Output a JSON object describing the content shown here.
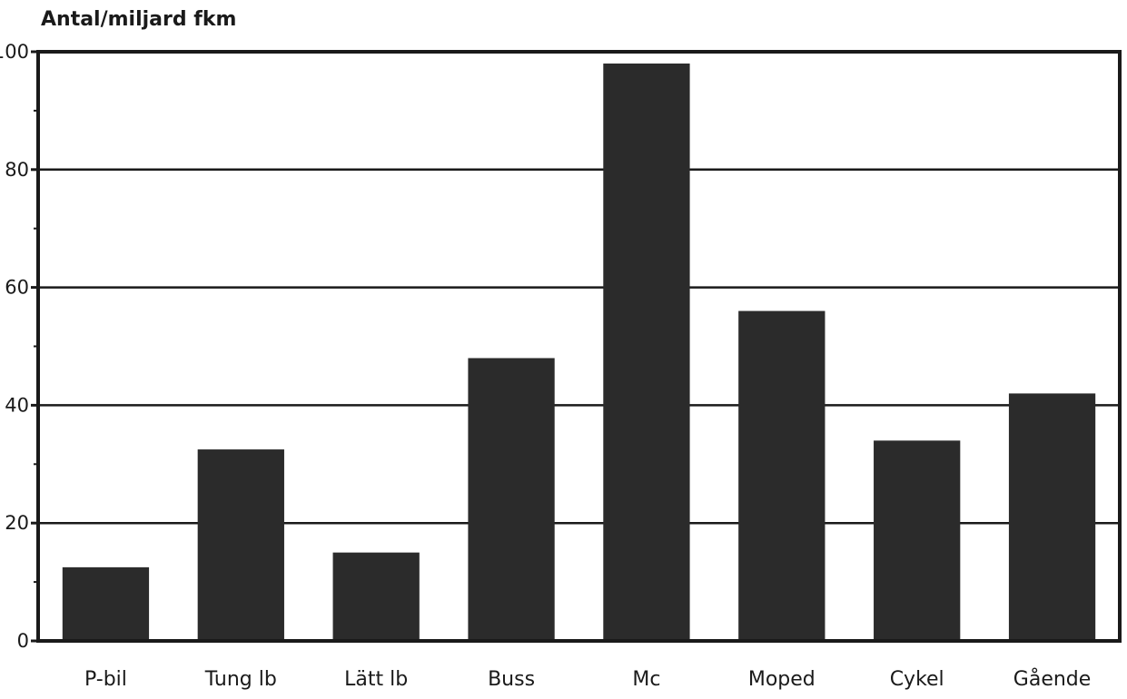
{
  "chart_data": {
    "type": "bar",
    "ylabel": "Antal/miljard fkm",
    "xlabel": "",
    "categories": [
      "P-bil",
      "Tung lb",
      "Lätt lb",
      "Buss",
      "Mc",
      "Moped",
      "Cykel",
      "Gående"
    ],
    "values": [
      12.5,
      32.5,
      15,
      48,
      98,
      56,
      34,
      42
    ],
    "ylim": [
      0,
      100
    ],
    "yticks": [
      0,
      20,
      40,
      60,
      80,
      100
    ],
    "grid": true,
    "legend": "none",
    "colors": {
      "bar": "#2b2b2b",
      "axis": "#1a1a1a",
      "grid": "#1a1a1a",
      "background": "#ffffff"
    }
  }
}
